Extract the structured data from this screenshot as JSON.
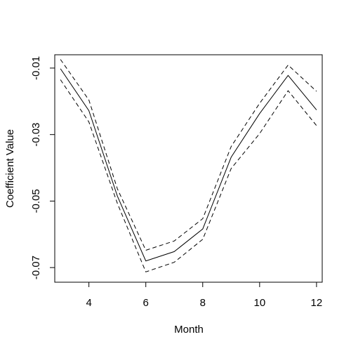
{
  "chart_data": {
    "type": "line",
    "title": "",
    "xlabel": "Month",
    "ylabel": "Coefficient Value",
    "xlim": [
      2.8,
      12.2
    ],
    "ylim": [
      -0.0744,
      -0.006
    ],
    "x_ticks": [
      4,
      6,
      8,
      10,
      12
    ],
    "y_ticks": [
      -0.01,
      -0.03,
      -0.05,
      -0.07
    ],
    "x_tick_labels": [
      "4",
      "6",
      "8",
      "10",
      "12"
    ],
    "y_tick_labels": [
      "-0.01",
      "-0.03",
      "-0.05",
      "-0.07"
    ],
    "grid": false,
    "legend": "none",
    "x": [
      3,
      4,
      5,
      6,
      7,
      8,
      9,
      10,
      11,
      12
    ],
    "series": [
      {
        "style": "solid",
        "color": "#000000",
        "values": [
          -0.0102,
          -0.0228,
          -0.0485,
          -0.068,
          -0.0652,
          -0.0584,
          -0.0368,
          -0.0237,
          -0.0122,
          -0.0226
        ]
      },
      {
        "style": "dashed",
        "color": "#000000",
        "values": [
          -0.0074,
          -0.0196,
          -0.0463,
          -0.0648,
          -0.062,
          -0.0553,
          -0.0336,
          -0.0206,
          -0.0091,
          -0.017
        ]
      },
      {
        "style": "dashed",
        "color": "#000000",
        "values": [
          -0.0135,
          -0.0262,
          -0.0507,
          -0.0713,
          -0.0684,
          -0.0615,
          -0.0402,
          -0.0297,
          -0.0168,
          -0.0273
        ]
      }
    ]
  }
}
